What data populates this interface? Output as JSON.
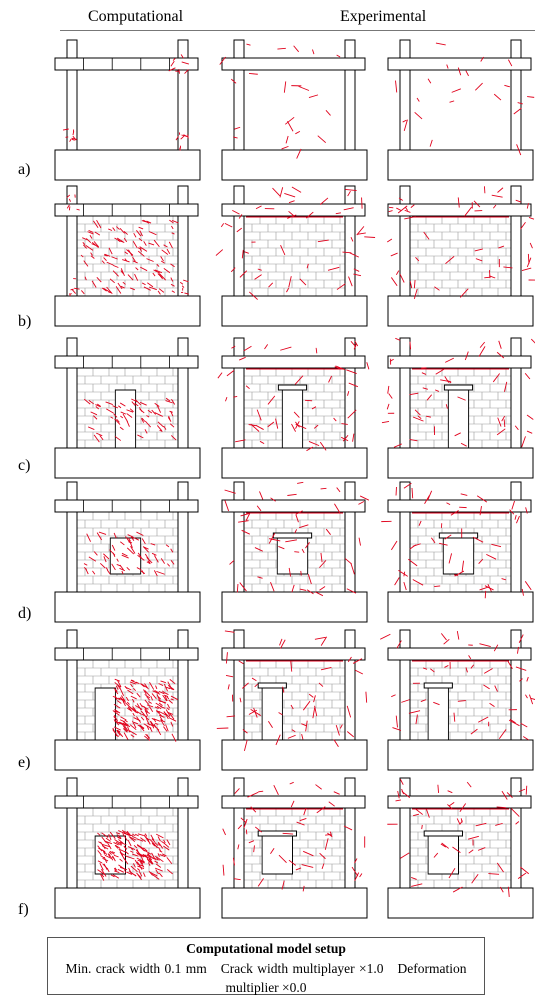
{
  "header": {
    "computational": "Computational",
    "experimental": "Experimental"
  },
  "rows": [
    {
      "label": "a)",
      "opening": "none"
    },
    {
      "label": "b)",
      "opening": "none"
    },
    {
      "label": "c)",
      "opening": "door-center"
    },
    {
      "label": "d)",
      "opening": "window-center"
    },
    {
      "label": "e)",
      "opening": "door-left"
    },
    {
      "label": "f)",
      "opening": "window-left"
    }
  ],
  "legend": {
    "title": "Computational model setup",
    "min_crack": "Min. crack width 0.1 mm",
    "crack_mult": "Crack width multiplayer ×1.0",
    "deformation": "Deformation",
    "deformation_mult": "multiplier ×0.0"
  },
  "colors": {
    "crack": "#e0001b",
    "outline": "#000000",
    "brick": "#9a9a9a"
  }
}
